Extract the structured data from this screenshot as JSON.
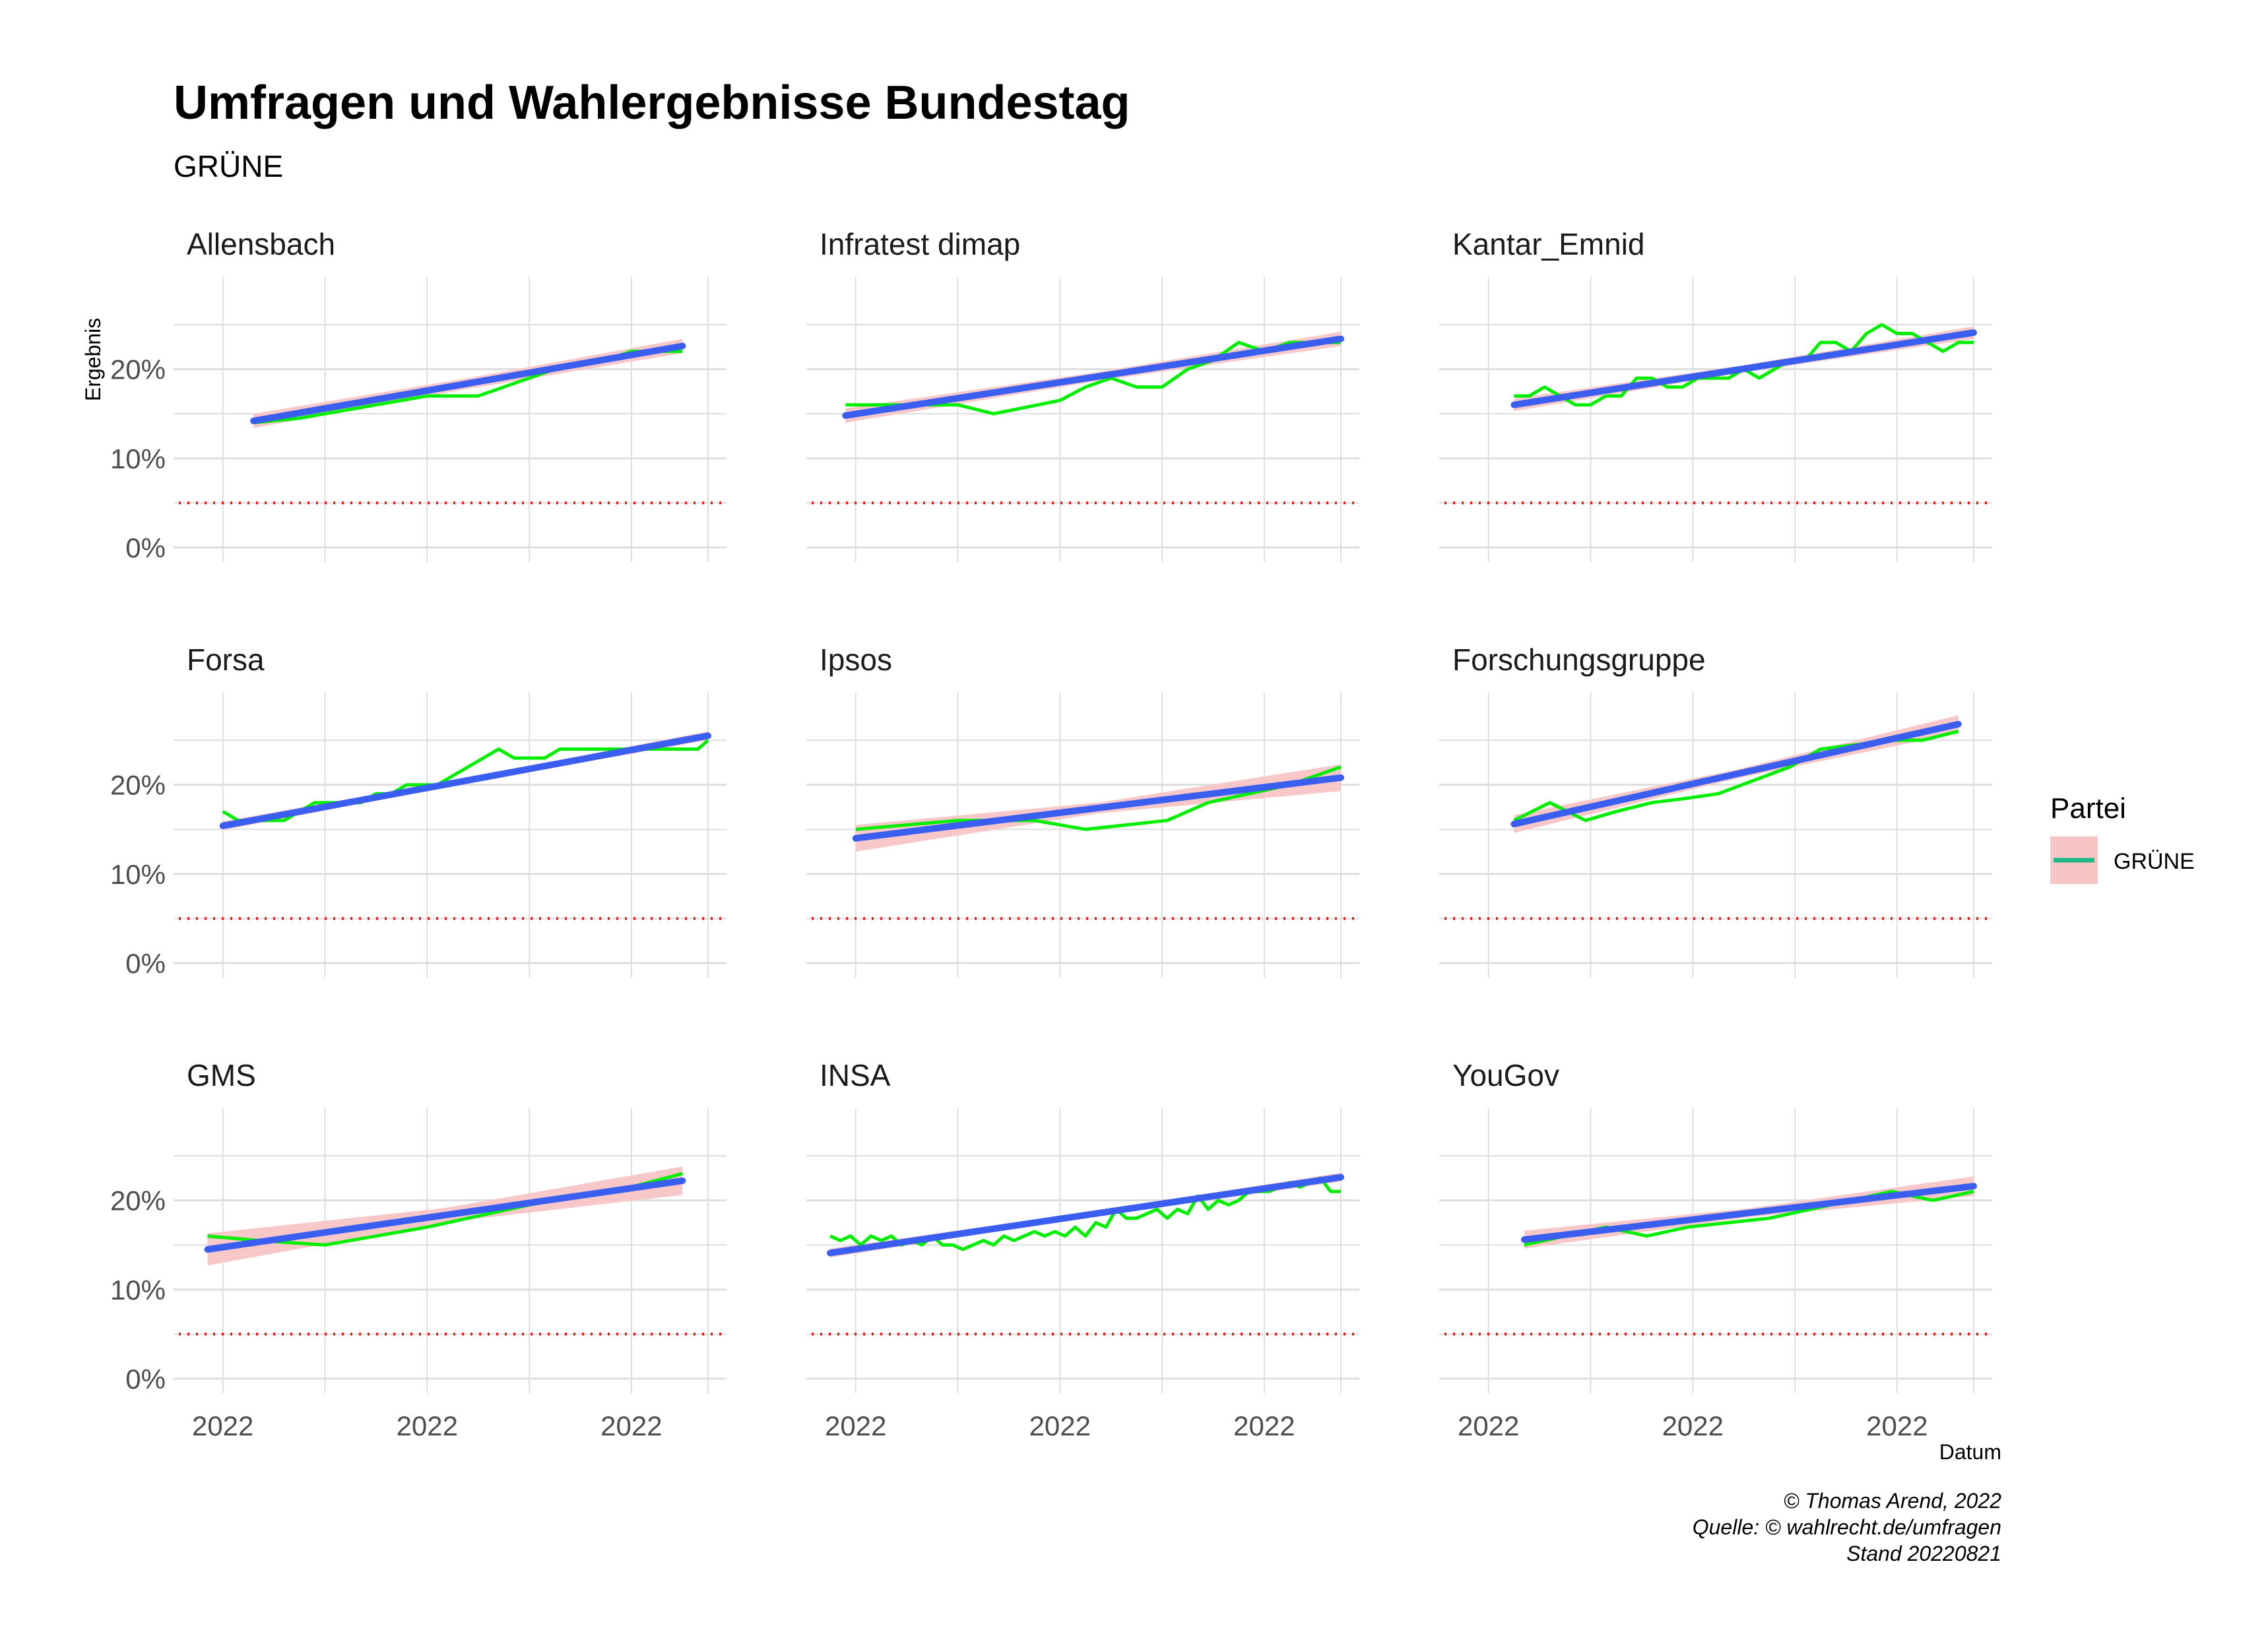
{
  "header": {
    "title": "Umfragen und Wahlergebnisse Bundestag",
    "subtitle": "GRÜNE"
  },
  "axes": {
    "xlabel": "Datum",
    "ylabel": "Ergebnis",
    "x_tick_labels": [
      "2022",
      "2022",
      "2022"
    ],
    "y_tick_labels": [
      "0%",
      "10%",
      "20%"
    ]
  },
  "legend": {
    "title": "Partei",
    "entries": [
      {
        "label": "GRÜNE",
        "line_color": "#1DB988",
        "band_color": "#F8C5C5"
      }
    ]
  },
  "caption": {
    "line1": "© Thomas Arend, 2022",
    "line2": "Quelle: © wahlrecht.de/umfragen",
    "line3": "Stand 20220821"
  },
  "colors": {
    "poll_line": "#00EE00",
    "trend_line": "#3A5EF0",
    "confidence_band": "#F8C5C5",
    "threshold_line": "#FF0000",
    "grid": "#DEDEDE"
  },
  "chart_data": {
    "type": "line",
    "layout": "facet-grid-3x3",
    "x_domain": [
      0,
      1
    ],
    "x_ticks": [
      0.05,
      0.25,
      0.45,
      0.65,
      0.85,
      1.0
    ],
    "y_unit": "percent",
    "ylim": [
      0,
      29
    ],
    "y_ticks": [
      0,
      10,
      20
    ],
    "y_minor_ticks": [
      5,
      15,
      25
    ],
    "threshold": 5,
    "grid": true,
    "legend_position": "right",
    "facets": [
      {
        "name": "Allensbach",
        "x": [
          0.11,
          0.2,
          0.25,
          0.3,
          0.35,
          0.4,
          0.45,
          0.5,
          0.55,
          0.6,
          0.65,
          0.7,
          0.75,
          0.8,
          0.85,
          0.9,
          0.95
        ],
        "y": [
          14,
          14.5,
          15,
          15.5,
          16,
          16.5,
          17,
          17,
          17,
          18,
          19,
          20,
          20.5,
          21,
          22,
          22,
          22
        ],
        "trend": [
          [
            0.11,
            14.2
          ],
          [
            0.95,
            22.6
          ]
        ],
        "band_halfwidth": [
          0.8,
          0.6,
          0.8
        ]
      },
      {
        "name": "Infratest dimap",
        "x": [
          0.03,
          0.15,
          0.25,
          0.32,
          0.45,
          0.5,
          0.55,
          0.6,
          0.65,
          0.7,
          0.75,
          0.8,
          0.85,
          0.9,
          0.95,
          1.0
        ],
        "y": [
          16,
          16,
          16,
          15,
          16.5,
          18,
          19,
          18,
          18,
          20,
          21,
          23,
          22,
          23,
          23,
          23
        ],
        "trend": [
          [
            0.03,
            14.8
          ],
          [
            1.0,
            23.4
          ]
        ],
        "band_halfwidth": [
          0.8,
          0.5,
          0.8
        ]
      },
      {
        "name": "Kantar_Emnid",
        "x": [
          0.1,
          0.13,
          0.16,
          0.19,
          0.22,
          0.25,
          0.28,
          0.31,
          0.34,
          0.37,
          0.4,
          0.43,
          0.46,
          0.49,
          0.52,
          0.55,
          0.58,
          0.61,
          0.64,
          0.67,
          0.7,
          0.73,
          0.76,
          0.79,
          0.82,
          0.85,
          0.88,
          0.91,
          0.94,
          0.97,
          1.0
        ],
        "y": [
          17,
          17,
          18,
          17,
          16,
          16,
          17,
          17,
          19,
          19,
          18,
          18,
          19,
          19,
          19,
          20,
          19,
          20,
          21,
          21,
          23,
          23,
          22,
          24,
          25,
          24,
          24,
          23,
          22,
          23,
          23
        ],
        "trend": [
          [
            0.1,
            16.0
          ],
          [
            1.0,
            24.1
          ]
        ],
        "band_halfwidth": [
          0.7,
          0.4,
          0.7
        ]
      },
      {
        "name": "Forsa",
        "x": [
          0.05,
          0.08,
          0.11,
          0.14,
          0.17,
          0.2,
          0.23,
          0.26,
          0.29,
          0.32,
          0.35,
          0.38,
          0.41,
          0.44,
          0.47,
          0.5,
          0.53,
          0.56,
          0.59,
          0.62,
          0.65,
          0.68,
          0.71,
          0.74,
          0.77,
          0.8,
          0.83,
          0.86,
          0.89,
          0.92,
          0.95,
          0.98,
          1.0
        ],
        "y": [
          17,
          16,
          16,
          16,
          16,
          17,
          18,
          18,
          18,
          18,
          19,
          19,
          20,
          20,
          20,
          21,
          22,
          23,
          24,
          23,
          23,
          23,
          24,
          24,
          24,
          24,
          24,
          24,
          24,
          24,
          24,
          24,
          25
        ],
        "trend": [
          [
            0.05,
            15.4
          ],
          [
            1.0,
            25.5
          ]
        ],
        "band_halfwidth": [
          0.5,
          0.3,
          0.5
        ]
      },
      {
        "name": "Ipsos",
        "x": [
          0.05,
          0.15,
          0.25,
          0.32,
          0.4,
          0.5,
          0.58,
          0.66,
          0.74,
          0.82,
          0.9,
          1.0
        ],
        "y": [
          15,
          15.5,
          16,
          16,
          16,
          15,
          15.5,
          16,
          18,
          19,
          20,
          22
        ],
        "trend": [
          [
            0.05,
            14.0
          ],
          [
            1.0,
            20.8
          ]
        ],
        "band_halfwidth": [
          1.5,
          0.6,
          1.5
        ]
      },
      {
        "name": "Forschungsgruppe",
        "x": [
          0.1,
          0.17,
          0.24,
          0.3,
          0.37,
          0.44,
          0.5,
          0.57,
          0.64,
          0.7,
          0.77,
          0.84,
          0.9,
          0.97
        ],
        "y": [
          16,
          18,
          16,
          17,
          18,
          18.5,
          19,
          20.5,
          22,
          24,
          24.5,
          25,
          25,
          26
        ],
        "trend": [
          [
            0.1,
            15.6
          ],
          [
            0.97,
            26.8
          ]
        ],
        "band_halfwidth": [
          1.0,
          0.5,
          1.0
        ]
      },
      {
        "name": "GMS",
        "x": [
          0.02,
          0.12,
          0.25,
          0.45,
          0.65,
          0.85,
          0.95
        ],
        "y": [
          16,
          15.5,
          15,
          17,
          19.5,
          21.5,
          23
        ],
        "trend": [
          [
            0.02,
            14.5
          ],
          [
            0.95,
            22.2
          ]
        ],
        "band_halfwidth": [
          1.8,
          0.8,
          1.6
        ]
      },
      {
        "name": "INSA",
        "x": [
          0.0,
          0.02,
          0.04,
          0.06,
          0.08,
          0.1,
          0.12,
          0.14,
          0.16,
          0.18,
          0.2,
          0.22,
          0.24,
          0.26,
          0.28,
          0.3,
          0.32,
          0.34,
          0.36,
          0.38,
          0.4,
          0.42,
          0.44,
          0.46,
          0.48,
          0.5,
          0.52,
          0.54,
          0.56,
          0.58,
          0.6,
          0.62,
          0.64,
          0.66,
          0.68,
          0.7,
          0.72,
          0.74,
          0.76,
          0.78,
          0.8,
          0.82,
          0.84,
          0.86,
          0.88,
          0.9,
          0.92,
          0.94,
          0.96,
          0.98,
          1.0
        ],
        "y": [
          16,
          15.5,
          16,
          15,
          16,
          15.5,
          16,
          15,
          15.5,
          15,
          16,
          15,
          15,
          14.5,
          15,
          15.5,
          15,
          16,
          15.5,
          16,
          16.5,
          16,
          16.5,
          16,
          17,
          16,
          17.5,
          17,
          19,
          18,
          18,
          18.5,
          19,
          18,
          19,
          18.5,
          20.5,
          19,
          20,
          19.5,
          20,
          21,
          21,
          21,
          21.5,
          22,
          21.5,
          22,
          22.5,
          21,
          21
        ],
        "trend": [
          [
            0.0,
            14.1
          ],
          [
            1.0,
            22.6
          ]
        ],
        "band_halfwidth": [
          0.5,
          0.3,
          0.5
        ]
      },
      {
        "name": "YouGov",
        "x": [
          0.12,
          0.2,
          0.28,
          0.36,
          0.44,
          0.52,
          0.6,
          0.68,
          0.76,
          0.84,
          0.92,
          1.0
        ],
        "y": [
          15,
          16,
          17,
          16,
          17,
          17.5,
          18,
          19,
          20,
          21,
          20,
          21
        ],
        "trend": [
          [
            0.12,
            15.6
          ],
          [
            1.0,
            21.6
          ]
        ],
        "band_halfwidth": [
          1.0,
          0.5,
          1.1
        ]
      }
    ]
  }
}
